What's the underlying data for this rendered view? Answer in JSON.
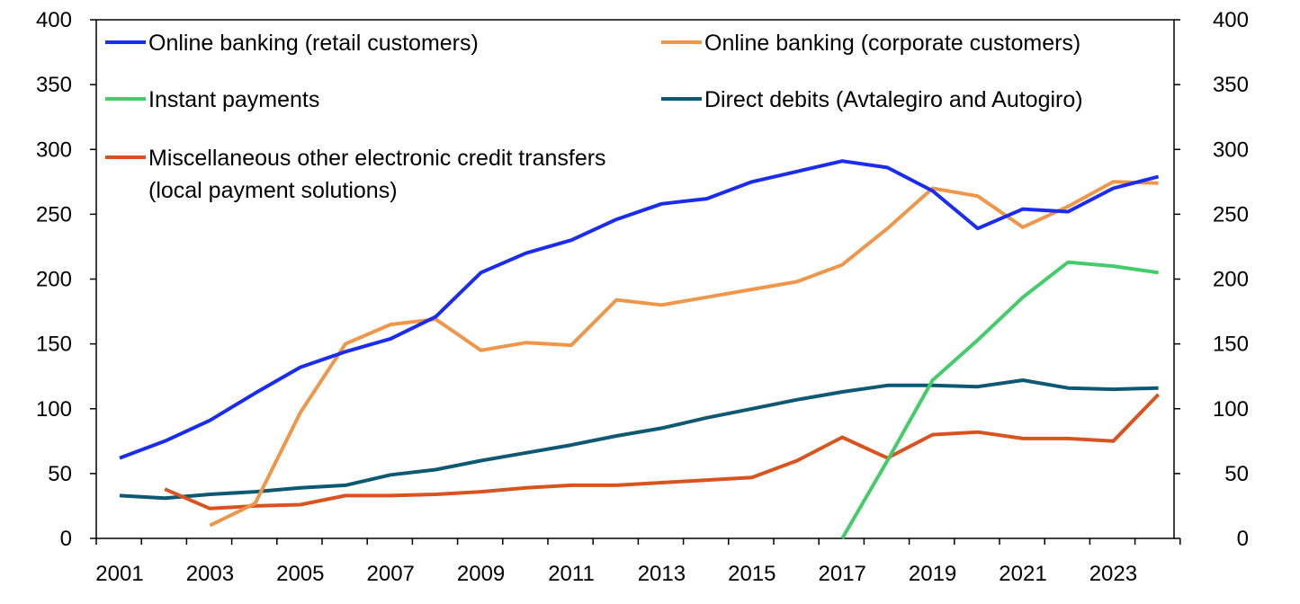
{
  "chart_data": {
    "type": "line",
    "x": [
      2001,
      2002,
      2003,
      2004,
      2005,
      2006,
      2007,
      2008,
      2009,
      2010,
      2011,
      2012,
      2013,
      2014,
      2015,
      2016,
      2017,
      2018,
      2019,
      2020,
      2021,
      2022,
      2023,
      2024
    ],
    "x_tick_labels": [
      "2001",
      "2003",
      "2005",
      "2007",
      "2009",
      "2011",
      "2013",
      "2015",
      "2017",
      "2019",
      "2021",
      "2023"
    ],
    "y_tick_labels": [
      "0",
      "50",
      "100",
      "150",
      "200",
      "250",
      "300",
      "350",
      "400"
    ],
    "ylim": [
      0,
      400
    ],
    "y_right_ylim": [
      0,
      400
    ],
    "legend_placement": "top-left, two columns inside plot",
    "series": [
      {
        "name": "Online banking (retail customers)",
        "color": "#1a2cf0",
        "values": [
          62,
          75,
          91,
          112,
          132,
          144,
          154,
          171,
          205,
          220,
          230,
          246,
          258,
          262,
          275,
          283,
          291,
          286,
          268,
          239,
          254,
          252,
          270,
          279
        ]
      },
      {
        "name": "Online banking (corporate customers)",
        "color": "#f0964a",
        "values": [
          null,
          null,
          10,
          27,
          97,
          150,
          165,
          169,
          145,
          151,
          149,
          184,
          180,
          186,
          192,
          198,
          211,
          239,
          270,
          264,
          240,
          256,
          275,
          274
        ]
      },
      {
        "name": "Instant payments",
        "color": "#44cc6a",
        "values": [
          null,
          null,
          null,
          null,
          null,
          null,
          null,
          null,
          null,
          null,
          null,
          null,
          null,
          null,
          null,
          null,
          0,
          60,
          122,
          153,
          186,
          213,
          210,
          205
        ]
      },
      {
        "name": "Direct debits (Avtalegiro and Autogiro)",
        "color": "#0d5873",
        "values": [
          33,
          31,
          34,
          36,
          39,
          41,
          49,
          53,
          60,
          66,
          72,
          79,
          85,
          93,
          100,
          107,
          113,
          118,
          118,
          117,
          122,
          116,
          115,
          116
        ]
      },
      {
        "name": "Miscellaneous other electronic credit transfers",
        "name_line2": "(local payment solutions)",
        "color": "#d9531e",
        "values": [
          null,
          38,
          23,
          25,
          26,
          33,
          33,
          34,
          36,
          39,
          41,
          41,
          43,
          45,
          47,
          60,
          78,
          62,
          80,
          82,
          77,
          77,
          75,
          111
        ]
      }
    ]
  }
}
